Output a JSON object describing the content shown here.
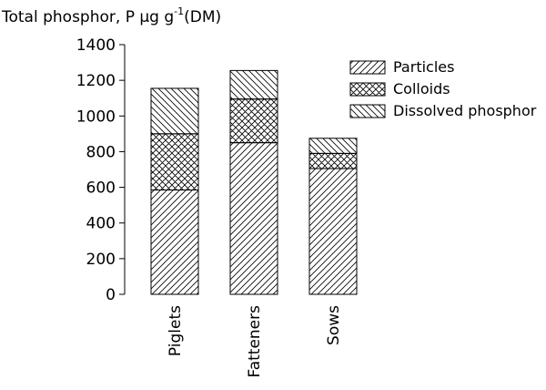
{
  "chart_data": {
    "type": "bar",
    "stacked": true,
    "title_main": "Total phosphor, P µg g",
    "title_sup": "-1",
    "title_tail": "(DM)",
    "categories": [
      "Piglets",
      "Fatteners",
      "Sows"
    ],
    "series": [
      {
        "name": "Particles",
        "values": [
          585,
          850,
          705
        ],
        "pattern": "diag-fwd"
      },
      {
        "name": "Colloids",
        "values": [
          315,
          245,
          85
        ],
        "pattern": "crosshatch"
      },
      {
        "name": "Dissolved phosphor",
        "values": [
          255,
          160,
          85
        ],
        "pattern": "diag-back"
      }
    ],
    "ylim": [
      0,
      1400
    ],
    "yticks": [
      0,
      200,
      400,
      600,
      800,
      1000,
      1200,
      1400
    ],
    "xlabel": "",
    "ylabel": "",
    "legend_position": "top-right",
    "grid": false,
    "line_color": "#000000"
  }
}
